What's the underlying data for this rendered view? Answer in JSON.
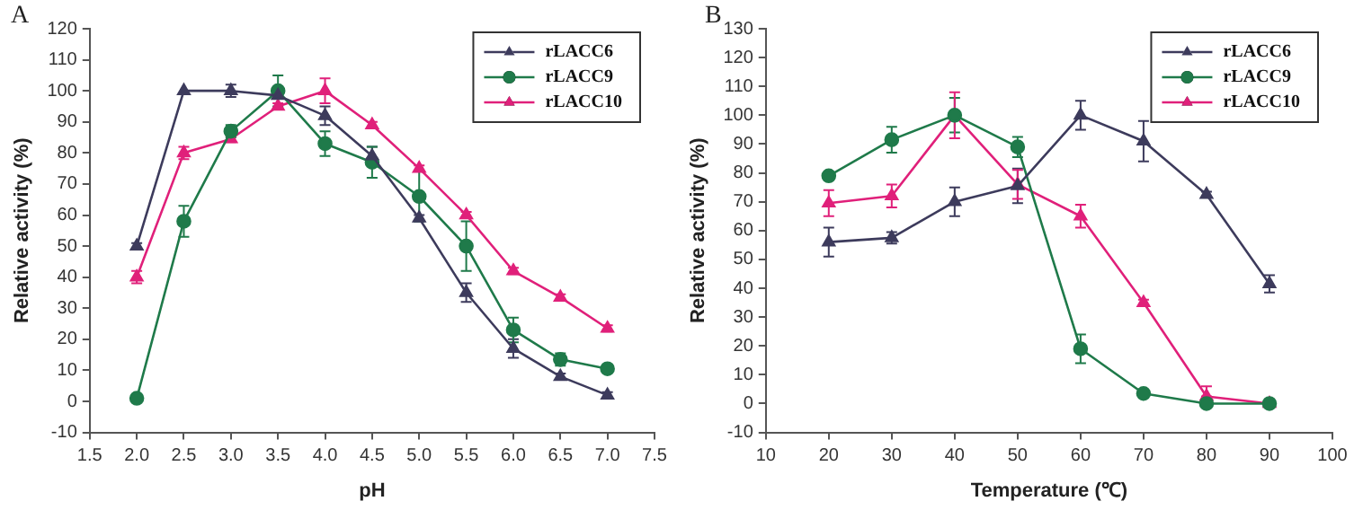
{
  "chart_data": [
    {
      "type": "line",
      "title": "A",
      "xlabel": "pH",
      "ylabel": "Relative activity (%)",
      "x": [
        2.0,
        2.5,
        3.0,
        3.5,
        4.0,
        4.5,
        5.0,
        5.5,
        6.0,
        6.5,
        7.0
      ],
      "series": [
        {
          "name": "rLACC6",
          "color": "#3d3b5c",
          "marker": "triangle",
          "values": [
            50,
            100,
            100,
            98.5,
            92,
            79,
            59,
            35,
            17,
            8,
            2
          ],
          "errors": [
            1,
            null,
            2,
            null,
            3,
            3,
            1,
            3,
            3,
            1,
            1
          ]
        },
        {
          "name": "rLACC9",
          "color": "#1f7a4a",
          "marker": "circle",
          "values": [
            1,
            58,
            87,
            100,
            83,
            77,
            66,
            50,
            23,
            13.5,
            10.5
          ],
          "errors": [
            null,
            5,
            2,
            5,
            4,
            5,
            8,
            8,
            4,
            2,
            1
          ]
        },
        {
          "name": "rLACC10",
          "color": "#e0207a",
          "marker": "triangle",
          "values": [
            40,
            80,
            84.5,
            95,
            100,
            89,
            75,
            60,
            42,
            33.5,
            23.5
          ],
          "errors": [
            2,
            2,
            1,
            1,
            4,
            1,
            1,
            1,
            1,
            1,
            1
          ]
        }
      ],
      "xlim": [
        1.5,
        7.5
      ],
      "xticks": [
        {
          "value": 1.5,
          "label": "1.5"
        },
        {
          "value": 2,
          "label": "2.0"
        },
        {
          "value": 2.5,
          "label": "2.5"
        },
        {
          "value": 3,
          "label": "3.0"
        },
        {
          "value": 3.5,
          "label": "3.5"
        },
        {
          "value": 4,
          "label": "4.0"
        },
        {
          "value": 4.5,
          "label": "4.5"
        },
        {
          "value": 5,
          "label": "5.0"
        },
        {
          "value": 5.5,
          "label": "5.5"
        },
        {
          "value": 6,
          "label": "6.0"
        },
        {
          "value": 6.5,
          "label": "6.5"
        },
        {
          "value": 7,
          "label": "7.0"
        },
        {
          "value": 7.5,
          "label": "7.5"
        }
      ],
      "ylim": [
        -10,
        120
      ],
      "yticks": [
        -10,
        0,
        10,
        20,
        30,
        40,
        50,
        60,
        70,
        80,
        90,
        100,
        110,
        120
      ],
      "grid": false,
      "legend": "top right"
    },
    {
      "type": "line",
      "title": "B",
      "xlabel": "Temperature (℃)",
      "ylabel": "Relative activity (%)",
      "x": [
        20,
        30,
        40,
        50,
        60,
        70,
        80,
        90
      ],
      "series": [
        {
          "name": "rLACC6",
          "color": "#3d3b5c",
          "marker": "triangle",
          "values": [
            56,
            57.5,
            70,
            75.5,
            100,
            91,
            72.5,
            41.5
          ],
          "errors": [
            5,
            2,
            5,
            6,
            5,
            7,
            1,
            3
          ]
        },
        {
          "name": "rLACC9",
          "color": "#1f7a4a",
          "marker": "circle",
          "values": [
            79,
            91.5,
            100,
            89,
            19,
            3.5,
            0,
            0
          ],
          "errors": [
            null,
            4.5,
            6,
            3.5,
            5,
            null,
            null,
            null
          ]
        },
        {
          "name": "rLACC10",
          "color": "#e0207a",
          "marker": "triangle",
          "values": [
            69.5,
            72,
            100,
            76,
            65,
            35,
            2.5,
            0
          ],
          "errors": [
            4.5,
            4,
            [
              92,
              108
            ],
            5,
            4,
            1,
            [
              2.5,
              6
            ],
            null
          ]
        }
      ],
      "xlim": [
        10,
        100
      ],
      "xticks": [
        10,
        20,
        30,
        40,
        50,
        60,
        70,
        80,
        90,
        100
      ],
      "ylim": [
        -10,
        130
      ],
      "yticks": [
        -10,
        0,
        10,
        20,
        30,
        40,
        50,
        60,
        70,
        80,
        90,
        100,
        110,
        120,
        130
      ],
      "grid": false,
      "legend": "top right"
    }
  ]
}
